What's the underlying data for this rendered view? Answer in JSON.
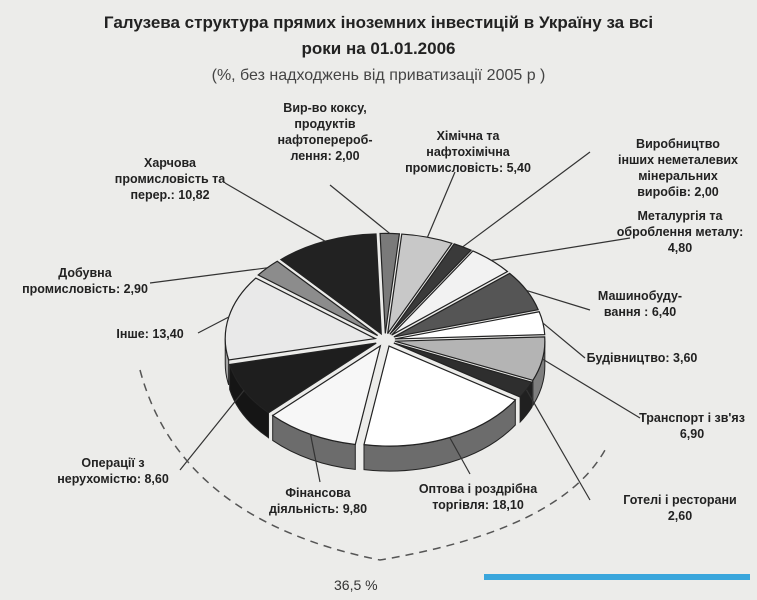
{
  "chart_data": {
    "type": "pie",
    "title": "Галузева структура прямих іноземних інвестицій в Україну за всі роки на 01.01.2006",
    "title_lines": [
      "Галузева структура прямих іноземних інвестицій в Україну за всі",
      "роки на 01.01.2006"
    ],
    "subtitle": "(%, без надходжень від приватизації 2005 р )",
    "slices": [
      {
        "label": "Вир-во коксу, продуктів нафтоперероб-лення: 2,00",
        "label_lines": [
          "Вир-во коксу,",
          "продуктів",
          "нафтоперероб-",
          "лення: 2,00"
        ],
        "value": 2.0,
        "color": "#7a7a7a"
      },
      {
        "label": "Хімічна та нафтохімічна промисловість: 5,40",
        "label_lines": [
          "Хімічна та",
          "нафтохімічна",
          "промисловість: 5,40"
        ],
        "value": 5.4,
        "color": "#c8c8c8"
      },
      {
        "label": "Виробництво інших неметалевих мінеральних виробів: 2,00",
        "label_lines": [
          "Виробництво",
          "інших неметалевих",
          "мінеральних",
          "виробів: 2,00"
        ],
        "value": 2.0,
        "color": "#3a3a3a"
      },
      {
        "label": "Металургія та оброблення металу: 4,80",
        "label_lines": [
          "Металургія та",
          "оброблення металу:",
          "4,80"
        ],
        "value": 4.8,
        "color": "#f2f2f2"
      },
      {
        "label": "Машинобуду-вання: 6,40",
        "label_lines": [
          "Машинобуду-",
          "вання : 6,40"
        ],
        "value": 6.4,
        "color": "#555555"
      },
      {
        "label": "Будівництво: 3,60",
        "label_lines": [
          "Будівництво: 3,60"
        ],
        "value": 3.6,
        "color": "#ffffff"
      },
      {
        "label": "Транспорт і зв'язок: 6,90",
        "label_lines": [
          "Транспорт і зв'яз",
          "6,90"
        ],
        "value": 6.9,
        "color": "#b4b4b4"
      },
      {
        "label": "Готелі і ресторани: 2,60",
        "label_lines": [
          "Готелі і ресторани",
          "2,60"
        ],
        "value": 2.6,
        "color": "#2e2e2e"
      },
      {
        "label": "Оптова і роздрібна торгівля: 18,10",
        "label_lines": [
          "Оптова і роздрібна",
          "торгівля: 18,10"
        ],
        "value": 18.1,
        "color": "#ffffff"
      },
      {
        "label": "Фінансова діяльність: 9,80",
        "label_lines": [
          "Фінансова",
          "діяльність: 9,80"
        ],
        "value": 9.8,
        "color": "#f7f7f7"
      },
      {
        "label": "Операції з нерухомістю: 8,60",
        "label_lines": [
          "Операції з",
          "нерухомістю: 8,60"
        ],
        "value": 8.6,
        "color": "#1e1e1e"
      },
      {
        "label": "Інше: 13,40",
        "label_lines": [
          "Інше: 13,40"
        ],
        "value": 13.4,
        "color": "#e9e9e9"
      },
      {
        "label": "Добувна промисловість: 2,90",
        "label_lines": [
          "Добувна",
          "промисловість: 2,90"
        ],
        "value": 2.9,
        "color": "#8c8c8c"
      },
      {
        "label": "Харчова промисловість та перер.: 10,82",
        "label_lines": [
          "Харчова",
          "промисловість та",
          "перер.: 10,82"
        ],
        "value": 10.82,
        "color": "#222222"
      }
    ],
    "group_annotation": "36,5 %",
    "legend": "none"
  }
}
